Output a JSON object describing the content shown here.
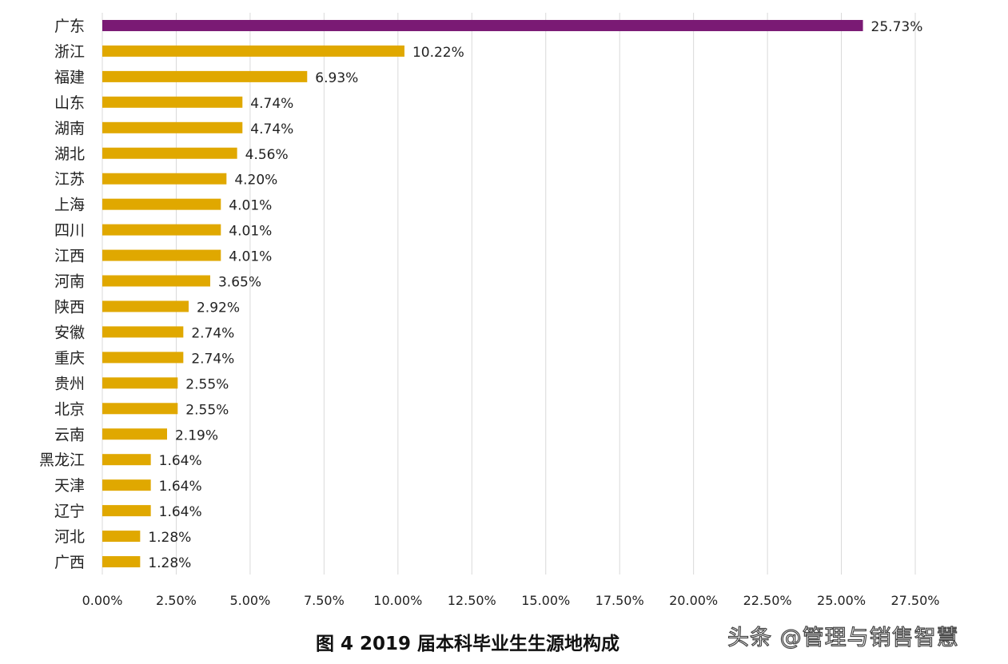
{
  "caption": "图 4  2019 届本科毕业生生源地构成",
  "watermark": "头条 @管理与销售智慧",
  "colors": {
    "highlight_bar": "#7a1a74",
    "bar": "#e0a800",
    "grid": "#d9d9d9",
    "text": "#222222"
  },
  "chart_data": {
    "type": "bar",
    "orientation": "horizontal",
    "title": "",
    "xlabel": "",
    "ylabel": "",
    "xlim": [
      0,
      27.5
    ],
    "x_ticks": [
      "0.00%",
      "2.50%",
      "5.00%",
      "7.50%",
      "10.00%",
      "12.50%",
      "15.00%",
      "17.50%",
      "20.00%",
      "22.50%",
      "25.00%",
      "27.50%"
    ],
    "grid": true,
    "legend": "none",
    "categories": [
      "广东",
      "浙江",
      "福建",
      "山东",
      "湖南",
      "湖北",
      "江苏",
      "上海",
      "四川",
      "江西",
      "河南",
      "陕西",
      "安徽",
      "重庆",
      "贵州",
      "北京",
      "云南",
      "黑龙江",
      "天津",
      "辽宁",
      "河北",
      "广西"
    ],
    "values": [
      25.73,
      10.22,
      6.93,
      4.74,
      4.74,
      4.56,
      4.2,
      4.01,
      4.01,
      4.01,
      3.65,
      2.92,
      2.74,
      2.74,
      2.55,
      2.55,
      2.19,
      1.64,
      1.64,
      1.64,
      1.28,
      1.28
    ],
    "data_labels": [
      "25.73%",
      "10.22%",
      "6.93%",
      "4.74%",
      "4.74%",
      "4.56%",
      "4.20%",
      "4.01%",
      "4.01%",
      "4.01%",
      "3.65%",
      "2.92%",
      "2.74%",
      "2.74%",
      "2.55%",
      "2.55%",
      "2.19%",
      "1.64%",
      "1.64%",
      "1.64%",
      "1.28%",
      "1.28%"
    ],
    "highlight_category": "广东"
  }
}
